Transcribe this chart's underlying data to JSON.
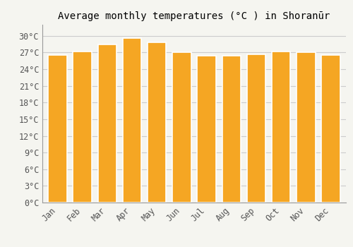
{
  "title": "Average monthly temperatures (°C ) in Shoranūr",
  "months": [
    "Jan",
    "Feb",
    "Mar",
    "Apr",
    "May",
    "Jun",
    "Jul",
    "Aug",
    "Sep",
    "Oct",
    "Nov",
    "Dec"
  ],
  "values": [
    26.5,
    27.2,
    28.5,
    29.6,
    28.8,
    27.0,
    26.4,
    26.4,
    26.7,
    27.2,
    27.0,
    26.5
  ],
  "bar_color": "#F5A623",
  "bar_edge_color": "#FFFFFF",
  "ylim": [
    0,
    32
  ],
  "yticks": [
    0,
    3,
    6,
    9,
    12,
    15,
    18,
    21,
    24,
    27,
    30
  ],
  "ytick_labels": [
    "0°C",
    "3°C",
    "6°C",
    "9°C",
    "12°C",
    "15°C",
    "18°C",
    "21°C",
    "24°C",
    "27°C",
    "30°C"
  ],
  "bg_color": "#F5F5F0",
  "grid_color": "#CCCCCC",
  "title_fontsize": 10,
  "tick_fontsize": 8.5,
  "bar_width": 0.75
}
